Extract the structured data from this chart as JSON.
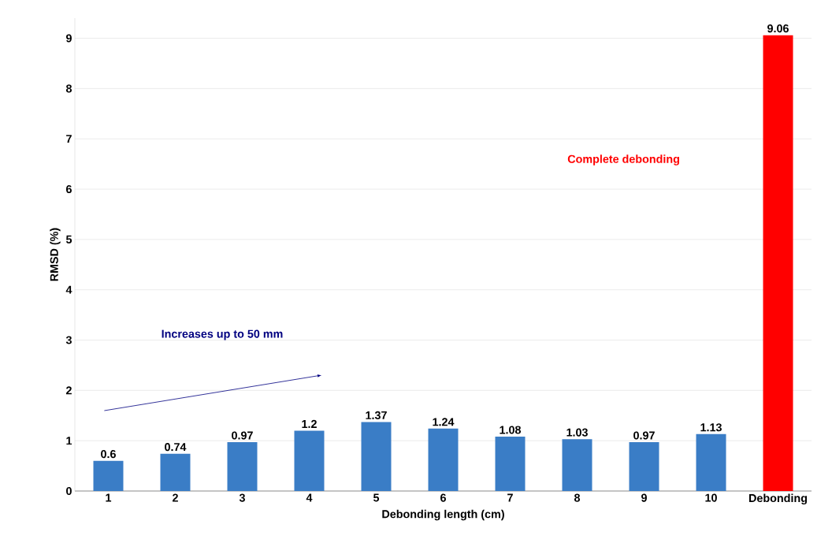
{
  "chart_data": {
    "type": "bar",
    "xlabel": "Debonding length (cm)",
    "ylabel": "RMSD (%)",
    "categories": [
      "1",
      "2",
      "3",
      "4",
      "5",
      "6",
      "7",
      "8",
      "9",
      "10",
      "Debonding"
    ],
    "values": [
      0.6,
      0.74,
      0.97,
      1.2,
      1.37,
      1.24,
      1.08,
      1.03,
      0.97,
      1.13,
      9.06
    ],
    "colors": [
      "#3a7dc6",
      "#3a7dc6",
      "#3a7dc6",
      "#3a7dc6",
      "#3a7dc6",
      "#3a7dc6",
      "#3a7dc6",
      "#3a7dc6",
      "#3a7dc6",
      "#3a7dc6",
      "#ff0000"
    ],
    "ylim": [
      0,
      9.4
    ],
    "yticks": [
      0,
      1,
      2,
      3,
      4,
      5,
      6,
      7,
      8,
      9
    ],
    "grid": "y",
    "data_labels": true,
    "annotations": [
      "Complete debonding",
      "Increases up to 50 mm"
    ]
  }
}
